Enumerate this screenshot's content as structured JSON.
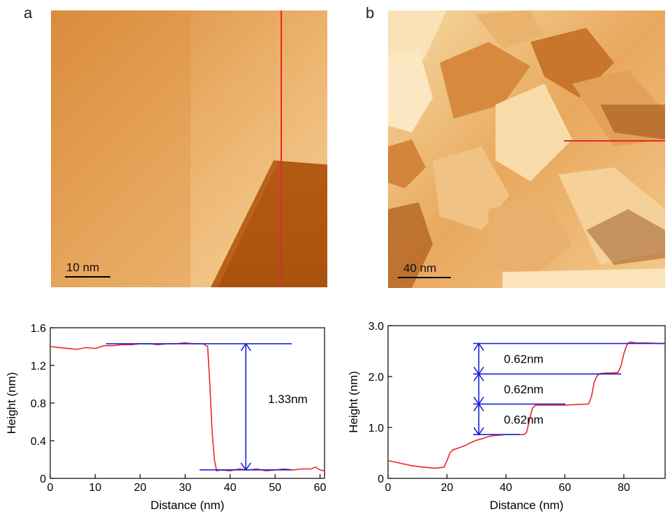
{
  "panels": [
    {
      "letter": "a",
      "scale_bar": "10 nm"
    },
    {
      "letter": "b",
      "scale_bar": "40 nm"
    }
  ],
  "colors": {
    "profile": "#e8262b",
    "annotation": "#1a22d6",
    "axis": "#000000"
  },
  "chart_data": [
    {
      "type": "line",
      "xlabel": "Distance (nm)",
      "ylabel": "Height (nm)",
      "xlim": [
        0,
        61
      ],
      "ylim": [
        0,
        1.6
      ],
      "xticks": [
        "0",
        "10",
        "20",
        "30",
        "40",
        "50",
        "60"
      ],
      "yticks": [
        "0",
        "0.4",
        "0.8",
        "1.2",
        "1.6"
      ],
      "series": [
        {
          "x": [
            0,
            2,
            4,
            6,
            8,
            10,
            12,
            14,
            16,
            18,
            20,
            22,
            24,
            26,
            28,
            30,
            32,
            34,
            35,
            35.5,
            36,
            36.5,
            37,
            38,
            40,
            42,
            44,
            46,
            48,
            50,
            52,
            54,
            56,
            58,
            59,
            60,
            61
          ],
          "y": [
            1.4,
            1.39,
            1.38,
            1.37,
            1.39,
            1.38,
            1.41,
            1.41,
            1.42,
            1.42,
            1.43,
            1.43,
            1.42,
            1.43,
            1.43,
            1.44,
            1.43,
            1.43,
            1.4,
            1.0,
            0.5,
            0.2,
            0.08,
            0.09,
            0.08,
            0.1,
            0.09,
            0.1,
            0.08,
            0.09,
            0.1,
            0.09,
            0.1,
            0.1,
            0.12,
            0.09,
            0.08
          ]
        }
      ],
      "annotations": [
        {
          "label": "1.33nm",
          "y_top": 1.43,
          "y_bottom": 0.09,
          "x": 43.5
        }
      ]
    },
    {
      "type": "line",
      "xlabel": "Distance (nm)",
      "ylabel": "Height (nm)",
      "xlim": [
        0,
        94
      ],
      "ylim": [
        0,
        3.0
      ],
      "xticks": [
        "0",
        "20",
        "40",
        "60",
        "80"
      ],
      "yticks": [
        "0",
        "1.0",
        "2.0",
        "3.0"
      ],
      "series": [
        {
          "x": [
            0,
            4,
            8,
            12,
            16,
            19,
            20,
            21,
            22,
            24,
            26,
            28,
            30,
            32,
            34,
            36,
            40,
            44,
            46,
            47,
            48,
            49,
            50,
            52,
            56,
            60,
            64,
            68,
            69,
            70,
            71,
            72,
            74,
            76,
            78,
            79,
            80,
            81,
            82,
            84,
            88,
            92,
            94
          ],
          "y": [
            0.35,
            0.3,
            0.25,
            0.22,
            0.2,
            0.22,
            0.35,
            0.5,
            0.56,
            0.6,
            0.64,
            0.7,
            0.75,
            0.78,
            0.82,
            0.84,
            0.86,
            0.86,
            0.86,
            0.9,
            1.15,
            1.38,
            1.44,
            1.44,
            1.44,
            1.44,
            1.45,
            1.46,
            1.6,
            1.9,
            2.02,
            2.06,
            2.07,
            2.07,
            2.08,
            2.2,
            2.45,
            2.62,
            2.68,
            2.66,
            2.66,
            2.65,
            2.65
          ]
        }
      ],
      "annotations": [
        {
          "label": "0.62nm",
          "y_top": 2.65,
          "y_bottom": 2.05
        },
        {
          "label": "0.62nm",
          "y_top": 2.05,
          "y_bottom": 1.46
        },
        {
          "label": "0.62nm",
          "y_top": 1.46,
          "y_bottom": 0.86
        }
      ]
    }
  ]
}
